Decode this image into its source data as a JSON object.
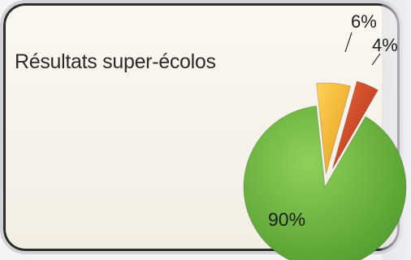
{
  "chart_data": {
    "type": "pie",
    "title": "Résultats super-écolos",
    "slices": [
      {
        "label": "90%",
        "value": 90,
        "color": "#6db23f"
      },
      {
        "label": "6%",
        "value": 6,
        "color": "#f2b128"
      },
      {
        "label": "4%",
        "value": 4,
        "color": "#cf3d1f"
      }
    ]
  }
}
